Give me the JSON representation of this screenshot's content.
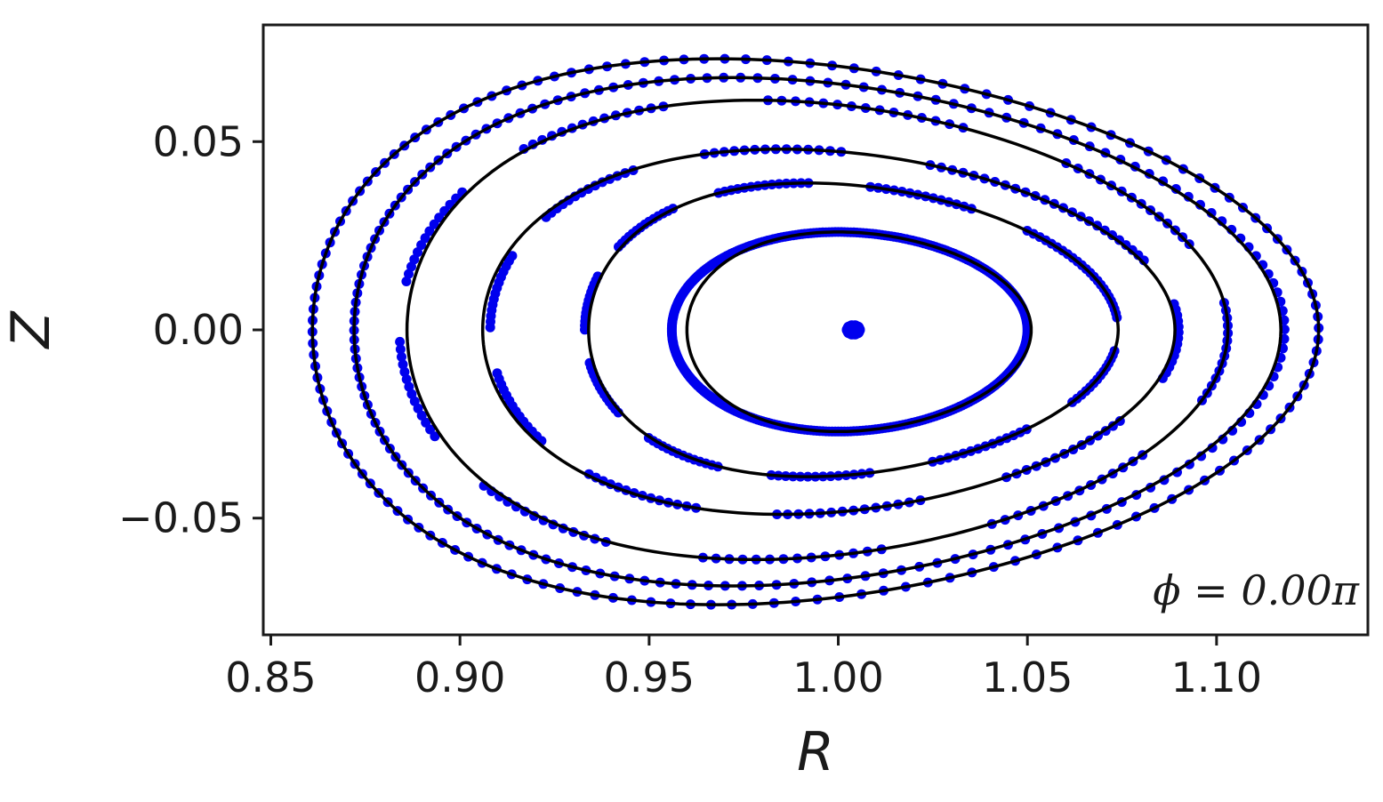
{
  "chart_data": {
    "type": "scatter",
    "xlabel": "R",
    "ylabel": "Z",
    "xlim": [
      0.848,
      1.14
    ],
    "ylim": [
      -0.081,
      0.081
    ],
    "xticks": [
      0.85,
      0.9,
      0.95,
      1.0,
      1.05,
      1.1
    ],
    "xtick_labels": [
      "0.85",
      "0.90",
      "0.95",
      "1.00",
      "1.05",
      "1.10"
    ],
    "yticks": [
      0.05,
      0.0,
      -0.05
    ],
    "ytick_labels": [
      "0.05",
      "0.00",
      "−0.05"
    ],
    "annotation": "ϕ = 0.00π",
    "grid": false,
    "colors": {
      "points": "#0000ee",
      "curves": "#000000"
    },
    "magnetic_axis": {
      "R": 1.004,
      "Z": 0.0
    },
    "flux_surfaces": [
      {
        "R_in": 0.96,
        "R_out": 1.051,
        "Z_top": 0.026,
        "Z_bot": -0.027,
        "R_peak": 1.0
      },
      {
        "R_in": 0.934,
        "R_out": 1.074,
        "Z_top": 0.039,
        "Z_bot": -0.039,
        "R_peak": 0.992
      },
      {
        "R_in": 0.906,
        "R_out": 1.089,
        "Z_top": 0.048,
        "Z_bot": -0.049,
        "R_peak": 0.985
      },
      {
        "R_in": 0.886,
        "R_out": 1.103,
        "Z_top": 0.061,
        "Z_bot": -0.061,
        "R_peak": 0.978
      },
      {
        "R_in": 0.872,
        "R_out": 1.117,
        "Z_top": 0.067,
        "Z_bot": -0.068,
        "R_peak": 0.972
      },
      {
        "R_in": 0.861,
        "R_out": 1.127,
        "Z_top": 0.072,
        "Z_bot": -0.073,
        "R_peak": 0.968
      }
    ]
  }
}
